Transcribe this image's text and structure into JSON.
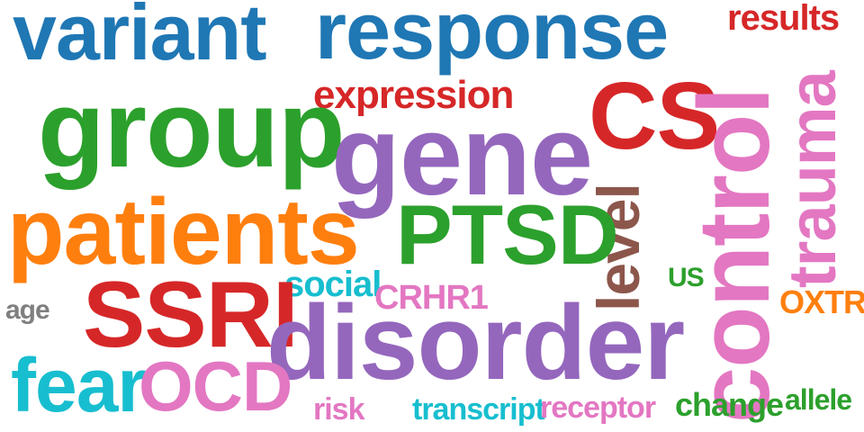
{
  "words": [
    {
      "text": "variant",
      "color": "#1f77b4"
    },
    {
      "text": "response",
      "color": "#1f77b4"
    },
    {
      "text": "results",
      "color": "#d62728"
    },
    {
      "text": "expression",
      "color": "#d62728"
    },
    {
      "text": "group",
      "color": "#2ca02c"
    },
    {
      "text": "CS",
      "color": "#d62728"
    },
    {
      "text": "gene",
      "color": "#9467bd"
    },
    {
      "text": "control",
      "color": "#e377c2"
    },
    {
      "text": "trauma",
      "color": "#e377c2"
    },
    {
      "text": "level",
      "color": "#8c564b"
    },
    {
      "text": "patients",
      "color": "#ff7f0e"
    },
    {
      "text": "PTSD",
      "color": "#2ca02c"
    },
    {
      "text": "social",
      "color": "#17becf"
    },
    {
      "text": "US",
      "color": "#2ca02c"
    },
    {
      "text": "CRHR1",
      "color": "#e377c2"
    },
    {
      "text": "OXTR",
      "color": "#ff7f0e"
    },
    {
      "text": "age",
      "color": "#7f7f7f"
    },
    {
      "text": "SSRI",
      "color": "#d62728"
    },
    {
      "text": "disorder",
      "color": "#9467bd"
    },
    {
      "text": "fear",
      "color": "#17becf"
    },
    {
      "text": "OCD",
      "color": "#e377c2"
    },
    {
      "text": "risk",
      "color": "#e377c2"
    },
    {
      "text": "transcript",
      "color": "#17becf"
    },
    {
      "text": "receptor",
      "color": "#e377c2"
    },
    {
      "text": "change",
      "color": "#2ca02c"
    },
    {
      "text": "allele",
      "color": "#2ca02c"
    }
  ]
}
